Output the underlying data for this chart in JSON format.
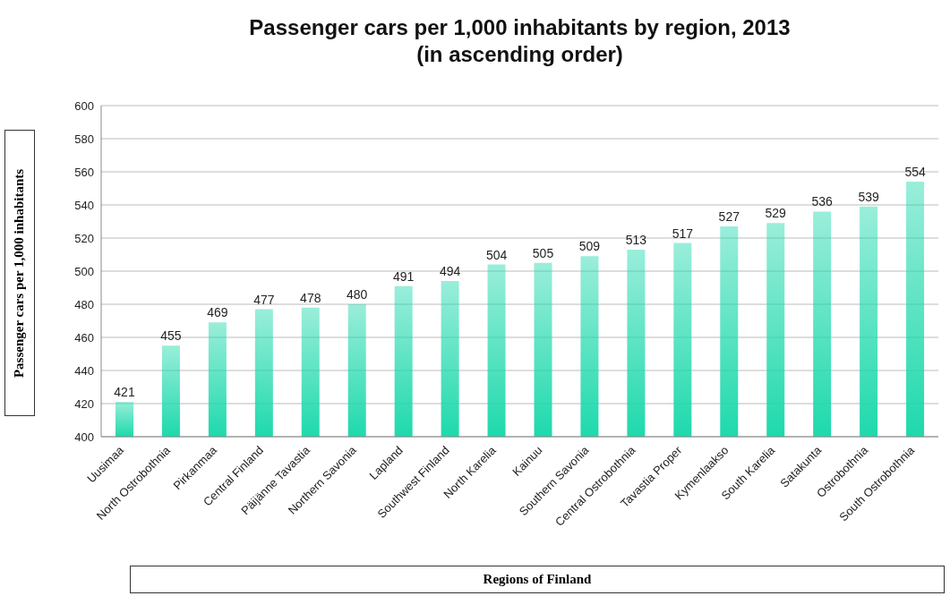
{
  "chart_data": {
    "type": "bar",
    "title": "Passenger cars per 1,000 inhabitants by region, 2013\n(in ascending order)",
    "xlabel": "Regions of Finland",
    "ylabel": "Passenger cars per 1,000 inhabitants",
    "categories": [
      "Uusimaa",
      "North Ostrobothnia",
      "Pirkanmaa",
      "Central Finland",
      "Päijänne Tavastia",
      "Northern Savonia",
      "Lapland",
      "Southwest Finland",
      "North Karelia",
      "Kainuu",
      "Southern Savonia",
      "Central Ostrobothnia",
      "Tavastia Proper",
      "Kymenlaakso",
      "South Karelia",
      "Satakunta",
      "Ostrobothnia",
      "South Ostrobothnia"
    ],
    "values": [
      421,
      455,
      469,
      477,
      478,
      480,
      491,
      494,
      504,
      505,
      509,
      513,
      517,
      527,
      529,
      536,
      539,
      554
    ],
    "color": "#1ed9ac",
    "ylim": [
      400,
      600
    ],
    "yticks": [
      400,
      420,
      440,
      460,
      480,
      500,
      520,
      540,
      560,
      580,
      600
    ],
    "grid": "y",
    "data_labels": true
  }
}
